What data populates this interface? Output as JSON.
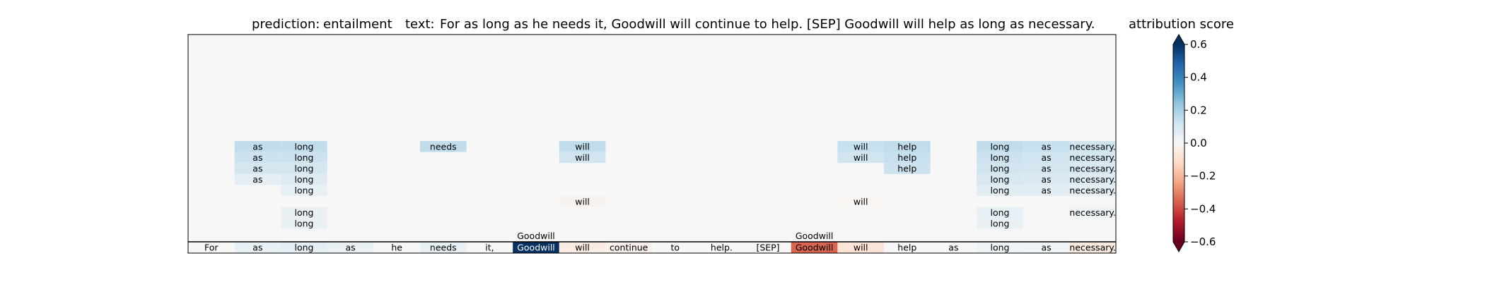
{
  "chart_data": {
    "type": "heatmap",
    "title": {
      "prediction_label": "prediction:",
      "prediction_value": "entailment",
      "text_label": "text:",
      "text_value": "For as long as he needs it, Goodwill will continue to help. [SEP] Goodwill will help as long as necessary."
    },
    "tokens": [
      "For",
      "as",
      "long",
      "as",
      "he",
      "needs",
      "it,",
      "Goodwill",
      "will",
      "continue",
      "to",
      "help.",
      "[SEP]",
      "Goodwill",
      "will",
      "help",
      "as",
      "long",
      "as",
      "necessary."
    ],
    "token_scores": [
      0.0,
      0.05,
      0.06,
      0.04,
      0.0,
      0.05,
      0.0,
      0.6,
      -0.05,
      -0.03,
      0.0,
      0.0,
      0.0,
      -0.35,
      -0.08,
      0.0,
      0.0,
      0.03,
      0.02,
      -0.06
    ],
    "above_labels": [
      {
        "col": 7,
        "text": "Goodwill"
      },
      {
        "col": 13,
        "text": "Goodwill"
      }
    ],
    "layer_rows": [
      [
        [
          1,
          "as",
          0.15
        ],
        [
          2,
          "long",
          0.15
        ],
        [
          5,
          "needs",
          0.15
        ],
        [
          8,
          "will",
          0.15
        ],
        [
          14,
          "will",
          0.14
        ],
        [
          15,
          "help",
          0.15
        ],
        [
          17,
          "long",
          0.15
        ],
        [
          18,
          "as",
          0.14
        ],
        [
          19,
          "necessary.",
          0.12
        ]
      ],
      [
        [
          1,
          "as",
          0.13
        ],
        [
          2,
          "long",
          0.13
        ],
        [
          8,
          "will",
          0.12
        ],
        [
          14,
          "will",
          0.12
        ],
        [
          15,
          "help",
          0.14
        ],
        [
          17,
          "long",
          0.13
        ],
        [
          18,
          "as",
          0.12
        ],
        [
          19,
          "necessary.",
          0.11
        ]
      ],
      [
        [
          1,
          "as",
          0.11
        ],
        [
          2,
          "long",
          0.11
        ],
        [
          15,
          "help",
          0.13
        ],
        [
          17,
          "long",
          0.12
        ],
        [
          18,
          "as",
          0.11
        ],
        [
          19,
          "necessary.",
          0.1
        ]
      ],
      [
        [
          1,
          "as",
          0.06
        ],
        [
          2,
          "long",
          0.08
        ],
        [
          17,
          "long",
          0.1
        ],
        [
          18,
          "as",
          0.09
        ],
        [
          19,
          "necessary.",
          0.08
        ]
      ],
      [
        [
          2,
          "long",
          0.05
        ],
        [
          17,
          "long",
          0.07
        ],
        [
          18,
          "as",
          0.07
        ],
        [
          19,
          "necessary.",
          0.06
        ]
      ],
      [
        [
          8,
          "will",
          -0.02
        ],
        [
          14,
          "will",
          -0.01
        ]
      ],
      [
        [
          2,
          "long",
          0.04
        ],
        [
          17,
          "long",
          0.05
        ],
        [
          19,
          "necessary.",
          0.03
        ]
      ],
      [
        [
          2,
          "long",
          0.04
        ],
        [
          17,
          "long",
          0.04
        ]
      ]
    ],
    "colorbar": {
      "label": "attribution score",
      "vmin": -0.6,
      "vmax": 0.6,
      "ticks": [
        0.6,
        0.4,
        0.2,
        0.0,
        -0.2,
        -0.4,
        -0.6
      ],
      "tick_labels": [
        "0.6",
        "0.4",
        "0.2",
        "0.0",
        "−0.2",
        "−0.4",
        "−0.6"
      ],
      "colormap": "RdBu"
    },
    "colors": {
      "background": "#f7f7f7",
      "positive_max": "#053061",
      "negative_max": "#67001f",
      "neutral": "#f7f7f7"
    }
  }
}
